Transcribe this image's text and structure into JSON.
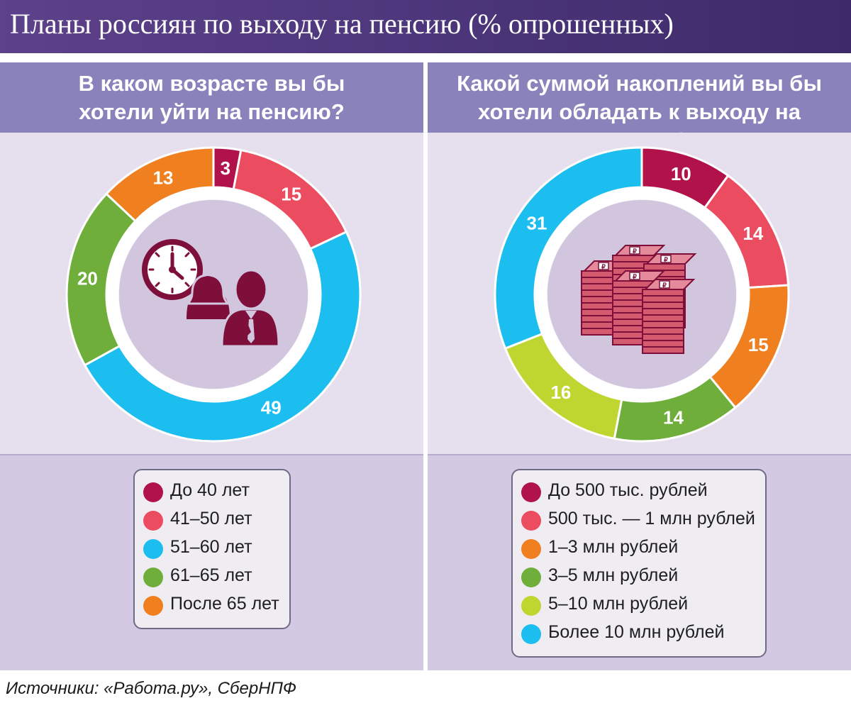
{
  "header": {
    "title": "Планы россиян по выходу на пенсию (% опрошенных)"
  },
  "left_panel": {
    "question_line1": "В каком возрасте вы бы",
    "question_line2": "хотели уйти на пенсию?",
    "icon": "clock-and-people-icon"
  },
  "right_panel": {
    "question_line1": "Какой суммой накоплений вы бы",
    "question_line2": "хотели обладать к выходу на пенсию?",
    "icon": "money-stacks-icon"
  },
  "chart_data": [
    {
      "type": "pie",
      "title": "В каком возрасте вы бы хотели уйти на пенсию?",
      "unit": "% опрошенных",
      "categories": [
        "До 40 лет",
        "41–50 лет",
        "51–60 лет",
        "61–65 лет",
        "После 65 лет"
      ],
      "values": [
        3,
        15,
        49,
        20,
        13
      ],
      "colors": [
        "#b1124a",
        "#ec4c5f",
        "#1cbdef",
        "#6fae3a",
        "#f07f1f"
      ],
      "legend_position": "bottom"
    },
    {
      "type": "pie",
      "title": "Какой суммой накоплений вы бы хотели обладать к выходу на пенсию?",
      "unit": "% опрошенных",
      "categories": [
        "До 500 тыс. рублей",
        "500 тыс. — 1 млн рублей",
        "1–3 млн рублей",
        "3–5 млн рублей",
        "5–10 млн рублей",
        "Более 10 млн рублей"
      ],
      "values": [
        10,
        14,
        15,
        14,
        16,
        31
      ],
      "colors": [
        "#b1124a",
        "#ec4c5f",
        "#f07f1f",
        "#6fae3a",
        "#bfd630",
        "#1cbdef"
      ],
      "legend_position": "bottom"
    }
  ],
  "footer": {
    "source": "Источники: «Работа.ру», СберНПФ"
  }
}
